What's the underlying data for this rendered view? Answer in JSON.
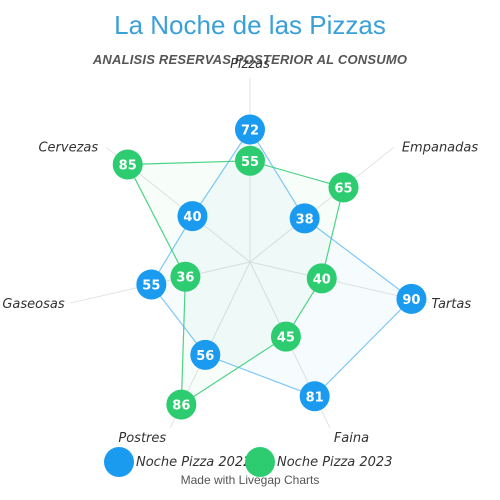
{
  "chart_data": {
    "type": "radar",
    "title": "La Noche de las Pizzas",
    "subtitle": "ANALISIS RESERVAS POSTERIOR AL CONSUMO",
    "axes": [
      "Pizzas",
      "Empanadas",
      "Tartas",
      "Faina",
      "Postres",
      "Gaseosas",
      "Cervezas"
    ],
    "series": [
      {
        "name": "Noche Pizza 2022",
        "color": "#1a9bf0",
        "values": [
          72,
          38,
          90,
          81,
          56,
          55,
          40
        ]
      },
      {
        "name": "Noche Pizza 2023",
        "color": "#2ecc71",
        "values": [
          55,
          65,
          40,
          45,
          86,
          36,
          85
        ]
      }
    ],
    "range": [
      0,
      100
    ],
    "legend": "bottom"
  },
  "credit": "Made with Livegap Charts"
}
